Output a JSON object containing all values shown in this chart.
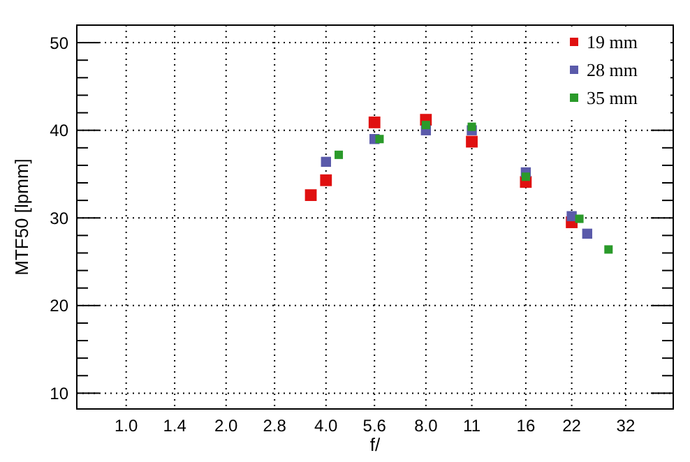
{
  "chart_data": {
    "type": "scatter",
    "xlabel": "f/",
    "ylabel": "MTF50 [lpmm]",
    "log": "x",
    "xlim": [
      0.71,
      44.5
    ],
    "xticks": [
      {
        "value": 1,
        "label": "1.0"
      },
      {
        "value": 1.4,
        "label": "1.4"
      },
      {
        "value": 2,
        "label": "2.0"
      },
      {
        "value": 2.8,
        "label": "2.8"
      },
      {
        "value": 4,
        "label": "4.0"
      },
      {
        "value": 5.6,
        "label": "5.6"
      },
      {
        "value": 8,
        "label": "8.0"
      },
      11,
      16,
      22,
      {
        "value": 32,
        "label": "32"
      }
    ],
    "ylim": [
      8.2,
      52
    ],
    "yticks": [
      {
        "value": 10,
        "label": "10"
      },
      {
        "value": 12,
        "label": null
      },
      {
        "value": 14,
        "label": null
      },
      {
        "value": 16,
        "label": null
      },
      {
        "value": 18,
        "label": null
      },
      {
        "value": 20,
        "label": "20"
      },
      {
        "value": 22,
        "label": null
      },
      {
        "value": 24,
        "label": null
      },
      {
        "value": 26,
        "label": null
      },
      {
        "value": 28,
        "label": null
      },
      {
        "value": 30,
        "label": "30"
      },
      {
        "value": 32,
        "label": null
      },
      {
        "value": 34,
        "label": null
      },
      {
        "value": 36,
        "label": null
      },
      {
        "value": 38,
        "label": null
      },
      {
        "value": 40,
        "label": "40"
      },
      {
        "value": 42,
        "label": null
      },
      {
        "value": 44,
        "label": null
      },
      {
        "value": 46,
        "label": null
      },
      {
        "value": 48,
        "label": null
      },
      {
        "value": 50,
        "label": "50"
      }
    ],
    "grid": true,
    "legend": "top right",
    "marker": "square",
    "series": [
      {
        "name": "19 mm",
        "color": "#e01010",
        "x": [
          3.6,
          4,
          5.6,
          8,
          11,
          16,
          22
        ],
        "values": [
          32.6,
          34.3,
          40.9,
          41.2,
          38.7,
          34.1,
          29.5
        ]
      },
      {
        "name": "28 mm",
        "color": "#5a5aaa",
        "x": [
          4,
          5.6,
          8,
          11,
          16,
          22,
          24.5
        ],
        "values": [
          36.4,
          39,
          40,
          40,
          35.2,
          30.2,
          28.2
        ]
      },
      {
        "name": "35 mm",
        "color": "#2a9a2a",
        "x": [
          4.37,
          5.8,
          8,
          11,
          16,
          23.2,
          28.4
        ],
        "values": [
          37.2,
          39,
          40.6,
          40.4,
          34.7,
          29.9,
          26.4
        ]
      }
    ]
  }
}
